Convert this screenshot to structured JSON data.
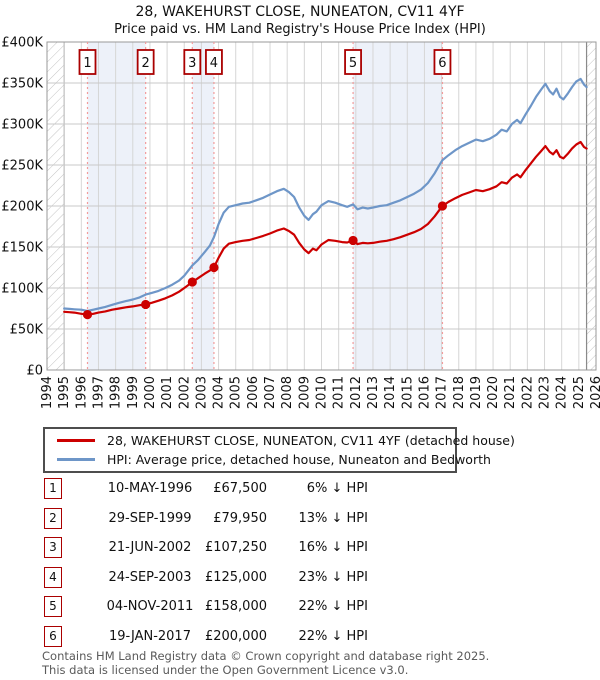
{
  "header": {
    "title": "28, WAKEHURST CLOSE, NUNEATON, CV11 4YF",
    "subtitle": "Price paid vs. HM Land Registry's House Price Index (HPI)"
  },
  "chart_data": {
    "type": "line",
    "title": "28, WAKEHURST CLOSE, NUNEATON, CV11 4YF",
    "subtitle": "Price paid vs. HM Land Registry's House Price Index (HPI)",
    "units": "GBP thousands",
    "x_axis": {
      "min": 1994,
      "max": 2026,
      "tick_step": 1,
      "tick_labels": [
        1994,
        1995,
        1996,
        1997,
        1998,
        1999,
        2000,
        2001,
        2002,
        2003,
        2004,
        2005,
        2006,
        2007,
        2008,
        2009,
        2010,
        2011,
        2012,
        2013,
        2014,
        2015,
        2016,
        2017,
        2018,
        2019,
        2020,
        2021,
        2022,
        2023,
        2024,
        2025,
        2026
      ]
    },
    "y_axis": {
      "min": 0,
      "max": 400,
      "tick_step": 50,
      "tick_labels": [
        "£0",
        "£50K",
        "£100K",
        "£150K",
        "£200K",
        "£250K",
        "£300K",
        "£350K",
        "£400K"
      ]
    },
    "grid": true,
    "no_data_hatch": [
      [
        1994,
        1995
      ],
      [
        2025.45,
        2026
      ]
    ],
    "ownership_bands": [
      [
        1996.36,
        1999.75
      ],
      [
        2002.47,
        2003.73
      ],
      [
        2011.84,
        2017.05
      ]
    ],
    "markers": [
      {
        "n": "1",
        "x": 1996.36,
        "y": 67.5
      },
      {
        "n": "2",
        "x": 1999.75,
        "y": 79.95
      },
      {
        "n": "3",
        "x": 2002.47,
        "y": 107.25
      },
      {
        "n": "4",
        "x": 2003.73,
        "y": 125
      },
      {
        "n": "5",
        "x": 2011.84,
        "y": 158
      },
      {
        "n": "6",
        "x": 2017.05,
        "y": 200
      }
    ],
    "series": [
      {
        "name": "HPI: Average price, detached house, Nuneaton and Bedworth",
        "color": "#6e96c8",
        "points": [
          [
            1995.0,
            75
          ],
          [
            1995.3,
            74.5
          ],
          [
            1995.6,
            74
          ],
          [
            1996.0,
            73.5
          ],
          [
            1996.36,
            72
          ],
          [
            1996.7,
            73.5
          ],
          [
            1997.0,
            75
          ],
          [
            1997.4,
            77
          ],
          [
            1997.8,
            79.5
          ],
          [
            1998.2,
            82
          ],
          [
            1998.6,
            84
          ],
          [
            1999.0,
            86
          ],
          [
            1999.4,
            88.5
          ],
          [
            1999.75,
            92
          ],
          [
            2000.1,
            94
          ],
          [
            2000.5,
            96.5
          ],
          [
            2000.9,
            100
          ],
          [
            2001.3,
            104
          ],
          [
            2001.7,
            109
          ],
          [
            2002.0,
            115
          ],
          [
            2002.47,
            127.5
          ],
          [
            2002.8,
            134
          ],
          [
            2003.2,
            144
          ],
          [
            2003.5,
            152
          ],
          [
            2003.73,
            162
          ],
          [
            2004.0,
            178
          ],
          [
            2004.3,
            192
          ],
          [
            2004.6,
            199
          ],
          [
            2005.0,
            201
          ],
          [
            2005.4,
            203
          ],
          [
            2005.8,
            204
          ],
          [
            2006.2,
            207
          ],
          [
            2006.6,
            210
          ],
          [
            2007.0,
            214
          ],
          [
            2007.4,
            218
          ],
          [
            2007.8,
            221
          ],
          [
            2008.1,
            217
          ],
          [
            2008.4,
            211
          ],
          [
            2008.7,
            198
          ],
          [
            2009.0,
            188
          ],
          [
            2009.25,
            183
          ],
          [
            2009.5,
            190
          ],
          [
            2009.7,
            193
          ],
          [
            2010.0,
            201
          ],
          [
            2010.4,
            206
          ],
          [
            2010.8,
            204
          ],
          [
            2011.2,
            201
          ],
          [
            2011.5,
            199
          ],
          [
            2011.84,
            202
          ],
          [
            2012.1,
            196
          ],
          [
            2012.4,
            198
          ],
          [
            2012.7,
            197
          ],
          [
            2013.0,
            198
          ],
          [
            2013.4,
            200
          ],
          [
            2013.8,
            201
          ],
          [
            2014.2,
            204
          ],
          [
            2014.6,
            207
          ],
          [
            2015.0,
            211
          ],
          [
            2015.4,
            215
          ],
          [
            2015.8,
            220
          ],
          [
            2016.2,
            228
          ],
          [
            2016.6,
            240
          ],
          [
            2016.9,
            251
          ],
          [
            2017.05,
            256
          ],
          [
            2017.4,
            262
          ],
          [
            2017.8,
            268
          ],
          [
            2018.2,
            273
          ],
          [
            2018.6,
            277
          ],
          [
            2019.0,
            281
          ],
          [
            2019.4,
            279
          ],
          [
            2019.8,
            282
          ],
          [
            2020.2,
            287
          ],
          [
            2020.5,
            293
          ],
          [
            2020.8,
            291
          ],
          [
            2021.1,
            300
          ],
          [
            2021.4,
            305
          ],
          [
            2021.6,
            301
          ],
          [
            2021.9,
            312
          ],
          [
            2022.2,
            322
          ],
          [
            2022.5,
            333
          ],
          [
            2022.8,
            342
          ],
          [
            2023.05,
            349
          ],
          [
            2023.3,
            340
          ],
          [
            2023.5,
            336
          ],
          [
            2023.7,
            343
          ],
          [
            2023.9,
            333
          ],
          [
            2024.1,
            330
          ],
          [
            2024.35,
            337
          ],
          [
            2024.6,
            345
          ],
          [
            2024.85,
            352
          ],
          [
            2025.1,
            355
          ],
          [
            2025.3,
            348
          ],
          [
            2025.45,
            345
          ]
        ]
      },
      {
        "name": "28, WAKEHURST CLOSE, NUNEATON, CV11 4YF (detached house)",
        "color": "#cc0000",
        "points": [
          [
            1995.0,
            71
          ],
          [
            1995.3,
            70.5
          ],
          [
            1995.6,
            70
          ],
          [
            1996.0,
            68.5
          ],
          [
            1996.36,
            67.5
          ],
          [
            1996.7,
            68.5
          ],
          [
            1997.0,
            70
          ],
          [
            1997.4,
            71.5
          ],
          [
            1997.8,
            73.5
          ],
          [
            1998.2,
            75
          ],
          [
            1998.6,
            76.5
          ],
          [
            1999.0,
            77.5
          ],
          [
            1999.4,
            79
          ],
          [
            1999.75,
            79.95
          ],
          [
            2000.1,
            82
          ],
          [
            2000.5,
            84.5
          ],
          [
            2000.9,
            87.5
          ],
          [
            2001.3,
            91
          ],
          [
            2001.7,
            95.5
          ],
          [
            2002.0,
            100
          ],
          [
            2002.47,
            107.25
          ],
          [
            2002.8,
            112
          ],
          [
            2003.2,
            117.5
          ],
          [
            2003.5,
            121.5
          ],
          [
            2003.73,
            125
          ],
          [
            2004.0,
            137
          ],
          [
            2004.3,
            148
          ],
          [
            2004.6,
            154
          ],
          [
            2005.0,
            156
          ],
          [
            2005.4,
            157.5
          ],
          [
            2005.8,
            158.5
          ],
          [
            2006.2,
            161
          ],
          [
            2006.6,
            163.5
          ],
          [
            2007.0,
            166.5
          ],
          [
            2007.4,
            170
          ],
          [
            2007.8,
            172.5
          ],
          [
            2008.1,
            169.5
          ],
          [
            2008.4,
            165
          ],
          [
            2008.7,
            155
          ],
          [
            2009.0,
            147
          ],
          [
            2009.25,
            142.5
          ],
          [
            2009.5,
            148
          ],
          [
            2009.7,
            146
          ],
          [
            2010.0,
            153
          ],
          [
            2010.4,
            158.5
          ],
          [
            2010.8,
            157.5
          ],
          [
            2011.2,
            156
          ],
          [
            2011.5,
            155.5
          ],
          [
            2011.84,
            158
          ],
          [
            2012.1,
            153.5
          ],
          [
            2012.4,
            155
          ],
          [
            2012.7,
            154.5
          ],
          [
            2013.0,
            155
          ],
          [
            2013.4,
            156.5
          ],
          [
            2013.8,
            157.5
          ],
          [
            2014.2,
            159.5
          ],
          [
            2014.6,
            162
          ],
          [
            2015.0,
            165
          ],
          [
            2015.4,
            168
          ],
          [
            2015.8,
            172
          ],
          [
            2016.2,
            178
          ],
          [
            2016.6,
            187.5
          ],
          [
            2016.9,
            196
          ],
          [
            2017.05,
            200
          ],
          [
            2017.4,
            205
          ],
          [
            2017.8,
            209.5
          ],
          [
            2018.2,
            213.5
          ],
          [
            2018.6,
            216.5
          ],
          [
            2019.0,
            219.5
          ],
          [
            2019.4,
            218
          ],
          [
            2019.8,
            220.5
          ],
          [
            2020.2,
            224
          ],
          [
            2020.5,
            229
          ],
          [
            2020.8,
            227.5
          ],
          [
            2021.1,
            234.5
          ],
          [
            2021.4,
            238.5
          ],
          [
            2021.6,
            235
          ],
          [
            2021.9,
            244
          ],
          [
            2022.2,
            252
          ],
          [
            2022.5,
            260
          ],
          [
            2022.8,
            267
          ],
          [
            2023.05,
            273
          ],
          [
            2023.3,
            266
          ],
          [
            2023.5,
            263
          ],
          [
            2023.7,
            268
          ],
          [
            2023.9,
            260
          ],
          [
            2024.1,
            258
          ],
          [
            2024.35,
            263.5
          ],
          [
            2024.6,
            270
          ],
          [
            2024.85,
            275
          ],
          [
            2025.1,
            278
          ],
          [
            2025.3,
            272
          ],
          [
            2025.45,
            270
          ]
        ]
      }
    ],
    "colors": {
      "price_line": "#cc0000",
      "hpi_line": "#6e96c8",
      "sale_dashed_line": "#f29b9b",
      "marker_box_border": "#aa0000",
      "ownership_band": "#edf1f9",
      "grid": "#cfcfcf",
      "hatch": "#c4c4c4"
    },
    "legend_position": "bottom"
  },
  "legend": {
    "items": [
      {
        "label": "28, WAKEHURST CLOSE, NUNEATON, CV11 4YF (detached house)",
        "color": "#cc0000"
      },
      {
        "label": "HPI: Average price, detached house, Nuneaton and Bedworth",
        "color": "#6e96c8"
      }
    ]
  },
  "sales_table": {
    "rows": [
      {
        "num": "1",
        "date": "10-MAY-1996",
        "price": "£67,500",
        "vs_hpi": "6% ↓ HPI"
      },
      {
        "num": "2",
        "date": "29-SEP-1999",
        "price": "£79,950",
        "vs_hpi": "13% ↓ HPI"
      },
      {
        "num": "3",
        "date": "21-JUN-2002",
        "price": "£107,250",
        "vs_hpi": "16% ↓ HPI"
      },
      {
        "num": "4",
        "date": "24-SEP-2003",
        "price": "£125,000",
        "vs_hpi": "23% ↓ HPI"
      },
      {
        "num": "5",
        "date": "04-NOV-2011",
        "price": "£158,000",
        "vs_hpi": "22% ↓ HPI"
      },
      {
        "num": "6",
        "date": "19-JAN-2017",
        "price": "£200,000",
        "vs_hpi": "22% ↓ HPI"
      }
    ]
  },
  "footer": {
    "line1": "Contains HM Land Registry data © Crown copyright and database right 2025.",
    "line2": "This data is licensed under the Open Government Licence v3.0."
  }
}
